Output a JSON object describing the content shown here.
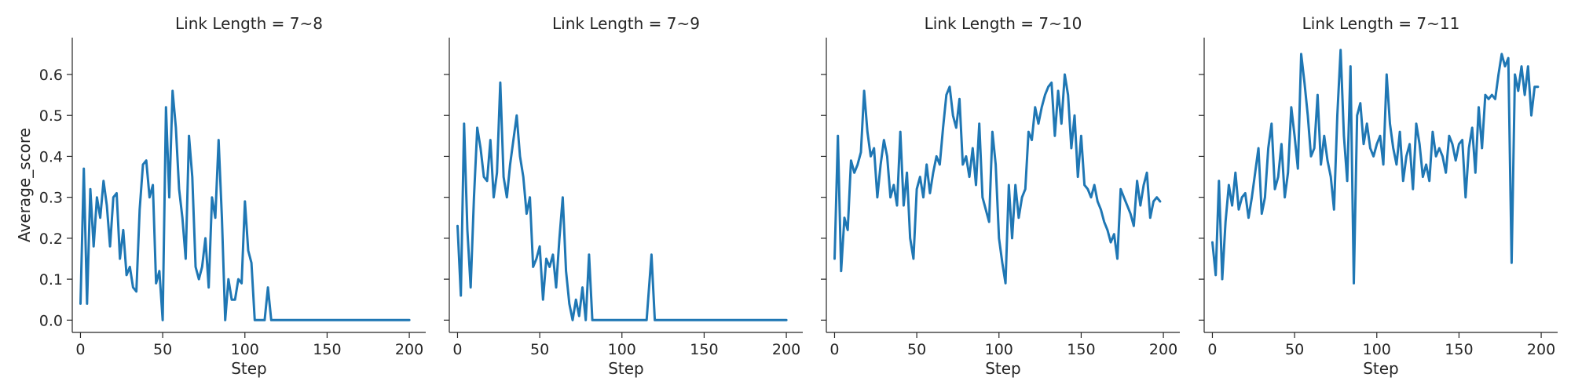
{
  "chart_data": [
    {
      "type": "line",
      "title": "Link Length = 7~8",
      "xlabel": "Step",
      "ylabel": "Average_score",
      "xlim": [
        -5,
        210
      ],
      "ylim": [
        -0.03,
        0.69
      ],
      "xticks": [
        0,
        50,
        100,
        150,
        200
      ],
      "yticks": [
        0.0,
        0.1,
        0.2,
        0.3,
        0.4,
        0.5,
        0.6
      ],
      "series": [
        {
          "color": "#1f77b4",
          "x": [
            0,
            2,
            4,
            6,
            8,
            10,
            12,
            14,
            16,
            18,
            20,
            22,
            24,
            26,
            28,
            30,
            32,
            34,
            36,
            38,
            40,
            42,
            44,
            46,
            48,
            50,
            52,
            54,
            56,
            58,
            60,
            62,
            64,
            66,
            68,
            70,
            72,
            74,
            76,
            78,
            80,
            82,
            84,
            86,
            88,
            90,
            92,
            94,
            96,
            98,
            100,
            102,
            104,
            106,
            108,
            110,
            112,
            114,
            116,
            118,
            120,
            122,
            124,
            126,
            128,
            130,
            132,
            134,
            136,
            138,
            140,
            150,
            160,
            170,
            180,
            190,
            200
          ],
          "y": [
            0.04,
            0.37,
            0.04,
            0.32,
            0.18,
            0.3,
            0.25,
            0.34,
            0.28,
            0.18,
            0.3,
            0.31,
            0.15,
            0.22,
            0.11,
            0.13,
            0.08,
            0.07,
            0.27,
            0.38,
            0.39,
            0.3,
            0.33,
            0.09,
            0.12,
            0.0,
            0.52,
            0.3,
            0.56,
            0.47,
            0.32,
            0.25,
            0.15,
            0.45,
            0.35,
            0.13,
            0.1,
            0.13,
            0.2,
            0.08,
            0.3,
            0.25,
            0.44,
            0.25,
            0.0,
            0.1,
            0.05,
            0.05,
            0.1,
            0.09,
            0.29,
            0.17,
            0.14,
            0.0,
            0.0,
            0.0,
            0.0,
            0.08,
            0.0,
            0.0,
            0.0,
            0.0,
            0.0,
            0.0,
            0.0,
            0.0,
            0.0,
            0.0,
            0.0,
            0.0,
            0.0,
            0.0,
            0.0,
            0.0,
            0.0,
            0.0,
            0.0
          ]
        }
      ]
    },
    {
      "type": "line",
      "title": "Link Length = 7~9",
      "xlabel": "Step",
      "ylabel": "",
      "xlim": [
        -5,
        210
      ],
      "ylim": [
        -0.03,
        0.69
      ],
      "xticks": [
        0,
        50,
        100,
        150,
        200
      ],
      "yticks": [
        0.0,
        0.1,
        0.2,
        0.3,
        0.4,
        0.5,
        0.6
      ],
      "series": [
        {
          "color": "#1f77b4",
          "x": [
            0,
            2,
            4,
            6,
            8,
            10,
            12,
            14,
            16,
            18,
            20,
            22,
            24,
            26,
            28,
            30,
            32,
            34,
            36,
            38,
            40,
            42,
            44,
            46,
            48,
            50,
            52,
            54,
            56,
            58,
            60,
            62,
            64,
            66,
            68,
            70,
            72,
            74,
            76,
            78,
            80,
            82,
            84,
            86,
            88,
            90,
            100,
            110,
            115,
            118,
            120,
            125,
            130,
            140,
            150,
            160,
            170,
            180,
            190,
            200
          ],
          "y": [
            0.23,
            0.06,
            0.48,
            0.22,
            0.08,
            0.3,
            0.47,
            0.42,
            0.35,
            0.34,
            0.44,
            0.3,
            0.36,
            0.58,
            0.35,
            0.3,
            0.38,
            0.44,
            0.5,
            0.4,
            0.35,
            0.26,
            0.3,
            0.13,
            0.15,
            0.18,
            0.05,
            0.15,
            0.13,
            0.16,
            0.08,
            0.2,
            0.3,
            0.12,
            0.04,
            0.0,
            0.05,
            0.01,
            0.08,
            0.0,
            0.16,
            0.0,
            0.0,
            0.0,
            0.0,
            0.0,
            0.0,
            0.0,
            0.0,
            0.16,
            0.0,
            0.0,
            0.0,
            0.0,
            0.0,
            0.0,
            0.0,
            0.0,
            0.0,
            0.0
          ]
        }
      ]
    },
    {
      "type": "line",
      "title": "Link Length = 7~10",
      "xlabel": "Step",
      "ylabel": "",
      "xlim": [
        -5,
        210
      ],
      "ylim": [
        -0.03,
        0.69
      ],
      "xticks": [
        0,
        50,
        100,
        150,
        200
      ],
      "yticks": [
        0.0,
        0.1,
        0.2,
        0.3,
        0.4,
        0.5,
        0.6
      ],
      "series": [
        {
          "color": "#1f77b4",
          "x": [
            0,
            2,
            4,
            6,
            8,
            10,
            12,
            14,
            16,
            18,
            20,
            22,
            24,
            26,
            28,
            30,
            32,
            34,
            36,
            38,
            40,
            42,
            44,
            46,
            48,
            50,
            52,
            54,
            56,
            58,
            60,
            62,
            64,
            66,
            68,
            70,
            72,
            74,
            76,
            78,
            80,
            82,
            84,
            86,
            88,
            90,
            92,
            94,
            96,
            98,
            100,
            102,
            104,
            106,
            108,
            110,
            112,
            114,
            116,
            118,
            120,
            122,
            124,
            126,
            128,
            130,
            132,
            134,
            136,
            138,
            140,
            142,
            144,
            146,
            148,
            150,
            152,
            154,
            156,
            158,
            160,
            162,
            164,
            166,
            168,
            170,
            172,
            174,
            176,
            178,
            180,
            182,
            184,
            186,
            188,
            190,
            192,
            194,
            196,
            198
          ],
          "y": [
            0.15,
            0.45,
            0.12,
            0.25,
            0.22,
            0.39,
            0.36,
            0.38,
            0.41,
            0.56,
            0.46,
            0.4,
            0.42,
            0.3,
            0.38,
            0.44,
            0.4,
            0.3,
            0.33,
            0.28,
            0.46,
            0.28,
            0.36,
            0.2,
            0.15,
            0.32,
            0.35,
            0.3,
            0.38,
            0.31,
            0.36,
            0.4,
            0.38,
            0.47,
            0.55,
            0.57,
            0.5,
            0.47,
            0.54,
            0.38,
            0.4,
            0.35,
            0.42,
            0.33,
            0.48,
            0.3,
            0.27,
            0.24,
            0.46,
            0.38,
            0.2,
            0.14,
            0.09,
            0.33,
            0.2,
            0.33,
            0.25,
            0.3,
            0.32,
            0.46,
            0.44,
            0.52,
            0.48,
            0.52,
            0.55,
            0.57,
            0.58,
            0.45,
            0.56,
            0.48,
            0.6,
            0.55,
            0.42,
            0.5,
            0.35,
            0.45,
            0.33,
            0.32,
            0.3,
            0.33,
            0.29,
            0.27,
            0.24,
            0.22,
            0.19,
            0.21,
            0.15,
            0.32,
            0.3,
            0.28,
            0.26,
            0.23,
            0.34,
            0.28,
            0.33,
            0.36,
            0.25,
            0.29,
            0.3,
            0.29
          ]
        }
      ]
    },
    {
      "type": "line",
      "title": "Link Length = 7~11",
      "xlabel": "Step",
      "ylabel": "",
      "xlim": [
        -5,
        210
      ],
      "ylim": [
        -0.03,
        0.69
      ],
      "xticks": [
        0,
        50,
        100,
        150,
        200
      ],
      "yticks": [
        0.0,
        0.1,
        0.2,
        0.3,
        0.4,
        0.5,
        0.6
      ],
      "series": [
        {
          "color": "#1f77b4",
          "x": [
            0,
            2,
            4,
            6,
            8,
            10,
            12,
            14,
            16,
            18,
            20,
            22,
            24,
            26,
            28,
            30,
            32,
            34,
            36,
            38,
            40,
            42,
            44,
            46,
            48,
            50,
            52,
            54,
            56,
            58,
            60,
            62,
            64,
            66,
            68,
            70,
            72,
            74,
            76,
            78,
            80,
            82,
            84,
            86,
            88,
            90,
            92,
            94,
            96,
            98,
            100,
            102,
            104,
            106,
            108,
            110,
            112,
            114,
            116,
            118,
            120,
            122,
            124,
            126,
            128,
            130,
            132,
            134,
            136,
            138,
            140,
            142,
            144,
            146,
            148,
            150,
            152,
            154,
            156,
            158,
            160,
            162,
            164,
            166,
            168,
            170,
            172,
            174,
            176,
            178,
            180,
            182,
            184,
            186,
            188,
            190,
            192,
            194,
            196,
            198
          ],
          "y": [
            0.19,
            0.11,
            0.34,
            0.1,
            0.24,
            0.33,
            0.28,
            0.36,
            0.27,
            0.3,
            0.31,
            0.25,
            0.3,
            0.36,
            0.42,
            0.26,
            0.3,
            0.42,
            0.48,
            0.32,
            0.35,
            0.43,
            0.3,
            0.36,
            0.52,
            0.45,
            0.37,
            0.65,
            0.58,
            0.5,
            0.4,
            0.42,
            0.55,
            0.38,
            0.45,
            0.39,
            0.35,
            0.27,
            0.5,
            0.66,
            0.45,
            0.34,
            0.62,
            0.09,
            0.5,
            0.53,
            0.43,
            0.48,
            0.42,
            0.4,
            0.43,
            0.45,
            0.38,
            0.6,
            0.48,
            0.42,
            0.38,
            0.46,
            0.34,
            0.4,
            0.43,
            0.32,
            0.48,
            0.43,
            0.35,
            0.38,
            0.34,
            0.46,
            0.4,
            0.42,
            0.4,
            0.36,
            0.45,
            0.43,
            0.39,
            0.43,
            0.44,
            0.3,
            0.42,
            0.47,
            0.36,
            0.52,
            0.42,
            0.55,
            0.54,
            0.55,
            0.54,
            0.6,
            0.65,
            0.62,
            0.64,
            0.14,
            0.6,
            0.56,
            0.62,
            0.55,
            0.62,
            0.5,
            0.57,
            0.57
          ]
        }
      ]
    }
  ]
}
